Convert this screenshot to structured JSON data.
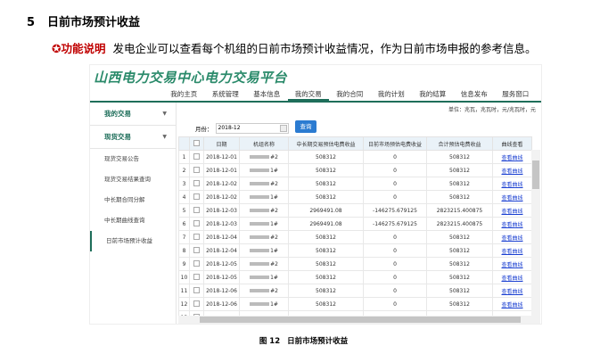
{
  "heading": {
    "number": "5",
    "title": "日前市场预计收益"
  },
  "paragraph": {
    "label": "功能说明",
    "text": "发电企业可以查看每个机组的日前市场预计收益情况，作为日前市场申报的参考信息。"
  },
  "app": {
    "title": "山西电力交易中心电力交易平台",
    "nav": [
      "我的主页",
      "系统管理",
      "基本信息",
      "我的交易",
      "我的合同",
      "我的计划",
      "我的结算",
      "信息发布",
      "服务窗口"
    ],
    "sidebar": {
      "groups": [
        {
          "label": "我的交易"
        },
        {
          "label": "现货交易"
        }
      ],
      "items": [
        "现货交易公告",
        "现货交易结果查询",
        "中长期合同分解",
        "中长期曲线查询",
        "日前市场预计收益"
      ],
      "active": "日前市场预计收益"
    },
    "unit": "单位：兆瓦，兆瓦时，元/兆瓦时，元",
    "month_label": "月份：",
    "month_value": "2018-12",
    "query_button": "查询",
    "columns": [
      "日期",
      "机组名称",
      "中长期交易预估电费收益",
      "日前市场预估电费收益",
      "合计预估电费收益",
      "曲线查看"
    ],
    "rows": [
      [
        "1",
        "2018-12-01",
        "#2",
        "508312",
        "0",
        "508312",
        "查看曲线"
      ],
      [
        "2",
        "2018-12-01",
        "1#",
        "508312",
        "0",
        "508312",
        "查看曲线"
      ],
      [
        "3",
        "2018-12-02",
        "#2",
        "508312",
        "0",
        "508312",
        "查看曲线"
      ],
      [
        "4",
        "2018-12-02",
        "1#",
        "508312",
        "0",
        "508312",
        "查看曲线"
      ],
      [
        "5",
        "2018-12-03",
        "#2",
        "2969491.08",
        "-146275.679125",
        "2823215.400875",
        "查看曲线"
      ],
      [
        "6",
        "2018-12-03",
        "1#",
        "2969491.08",
        "-146275.679125",
        "2823215.400875",
        "查看曲线"
      ],
      [
        "7",
        "2018-12-04",
        "#2",
        "508312",
        "0",
        "508312",
        "查看曲线"
      ],
      [
        "8",
        "2018-12-04",
        "1#",
        "508312",
        "0",
        "508312",
        "查看曲线"
      ],
      [
        "9",
        "2018-12-05",
        "#2",
        "508312",
        "0",
        "508312",
        "查看曲线"
      ],
      [
        "10",
        "2018-12-05",
        "1#",
        "508312",
        "0",
        "508312",
        "查看曲线"
      ],
      [
        "11",
        "2018-12-06",
        "#2",
        "508312",
        "0",
        "508312",
        "查看曲线"
      ],
      [
        "12",
        "2018-12-06",
        "1#",
        "508312",
        "0",
        "508312",
        "查看曲线"
      ],
      [
        "13",
        "",
        "",
        "",
        "",
        "",
        ""
      ]
    ]
  },
  "caption": {
    "number": "图 12",
    "title": "日前市场预计收益"
  }
}
